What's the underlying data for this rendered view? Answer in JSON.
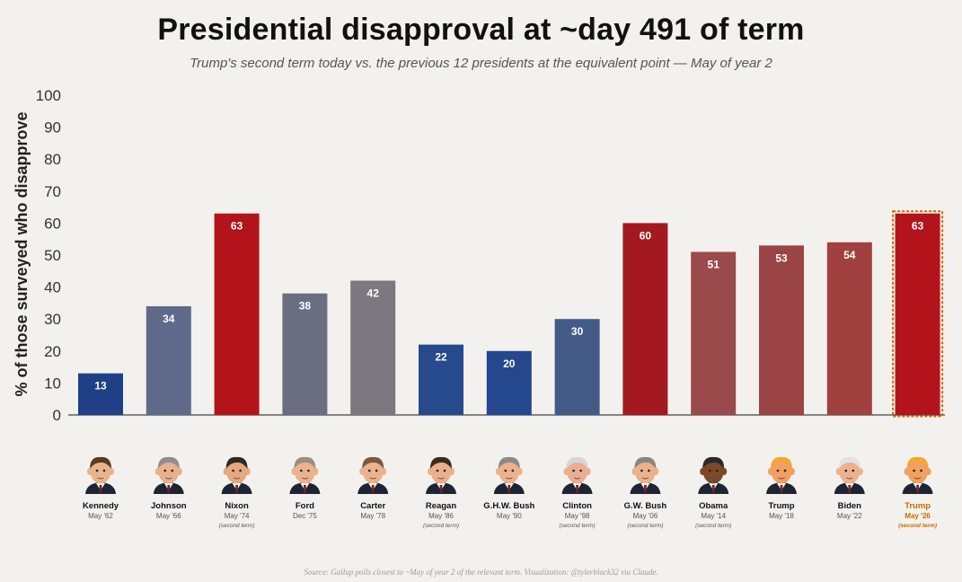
{
  "title": "Presidential disapproval at ~day 491 of term",
  "subtitle": "Trump's second term today vs. the previous 12 presidents at the equivalent point — May of year 2",
  "source": "Source: Gallup polls closest to ~May of year 2 of the relevant term. Visualization: @tylerblack32 via Claude.",
  "chart_data": {
    "type": "bar",
    "ylabel": "% of those surveyed who disapprove",
    "ylim": [
      0,
      100
    ],
    "yticks": [
      0,
      10,
      20,
      30,
      40,
      50,
      60,
      70,
      80,
      90,
      100
    ],
    "grid": false,
    "legend": "none",
    "bars": [
      {
        "name": "Kennedy",
        "date": "May '62",
        "note": "",
        "value": 13,
        "color": "#1f3f86",
        "skin": "#e9b48a",
        "hair": "#5a3a22",
        "highlight": false
      },
      {
        "name": "Johnson",
        "date": "May '66",
        "note": "",
        "value": 34,
        "color": "#5f6a8a",
        "skin": "#e8b08c",
        "hair": "#8d8d8d",
        "highlight": false
      },
      {
        "name": "Nixon",
        "date": "May '74",
        "note": "(second term)",
        "value": 63,
        "color": "#b3141b",
        "skin": "#e4a97e",
        "hair": "#2f2a26",
        "highlight": false
      },
      {
        "name": "Ford",
        "date": "Dec '75",
        "note": "",
        "value": 38,
        "color": "#6b6e80",
        "skin": "#eab38e",
        "hair": "#9c8e80",
        "highlight": false
      },
      {
        "name": "Carter",
        "date": "May '78",
        "note": "",
        "value": 42,
        "color": "#7b7880",
        "skin": "#eab38e",
        "hair": "#7a5a3a",
        "highlight": false
      },
      {
        "name": "Reagan",
        "date": "May '86",
        "note": "(second term)",
        "value": 22,
        "color": "#274a8c",
        "skin": "#e8b08c",
        "hair": "#3a2a20",
        "highlight": false
      },
      {
        "name": "G.H.W. Bush",
        "date": "May '90",
        "note": "",
        "value": 20,
        "color": "#24478e",
        "skin": "#eab38e",
        "hair": "#8d8a86",
        "highlight": false
      },
      {
        "name": "Clinton",
        "date": "May '98",
        "note": "(second term)",
        "value": 30,
        "color": "#445a86",
        "skin": "#eaaf90",
        "hair": "#d6d6d6",
        "highlight": false
      },
      {
        "name": "G.W. Bush",
        "date": "May '06",
        "note": "(second term)",
        "value": 60,
        "color": "#a3191f",
        "skin": "#eab38e",
        "hair": "#8a8580",
        "highlight": false
      },
      {
        "name": "Obama",
        "date": "May '14",
        "note": "(second term)",
        "value": 51,
        "color": "#9b4a4c",
        "skin": "#7a4a2a",
        "hair": "#2a2a2a",
        "highlight": false
      },
      {
        "name": "Trump",
        "date": "May '18",
        "note": "",
        "value": 53,
        "color": "#9a4446",
        "skin": "#f0a060",
        "hair": "#f2a63a",
        "highlight": false
      },
      {
        "name": "Biden",
        "date": "May '22",
        "note": "",
        "value": 54,
        "color": "#a0403f",
        "skin": "#eab38e",
        "hair": "#e2e2e2",
        "highlight": false
      },
      {
        "name": "Trump",
        "date": "May '26",
        "note": "(second term)",
        "value": 63,
        "color": "#b3141b",
        "skin": "#f0a060",
        "hair": "#f2a63a",
        "highlight": true
      }
    ],
    "highlight_text_color": "#c86b00"
  }
}
